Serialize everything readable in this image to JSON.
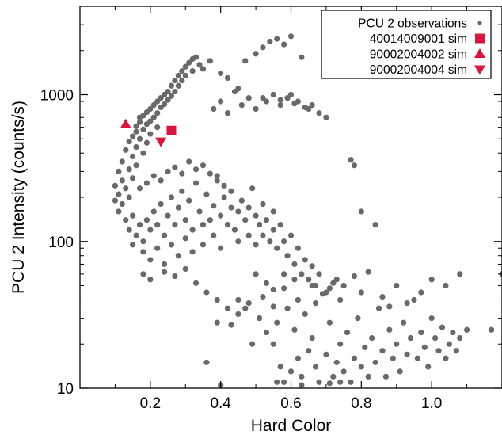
{
  "chart_data": {
    "type": "scatter",
    "title": "",
    "xlabel": "Hard Color",
    "ylabel": "PCU 2 Intensity (counts/s)",
    "xlim": [
      0.0,
      1.2
    ],
    "ylim": [
      10,
      4000
    ],
    "y_scale": "log",
    "grid": false,
    "legend_position": "top-right",
    "x_ticks": [
      {
        "value": 0.2,
        "label": "0.2"
      },
      {
        "value": 0.4,
        "label": "0.4"
      },
      {
        "value": 0.6,
        "label": "0.6"
      },
      {
        "value": 0.8,
        "label": "0.8"
      },
      {
        "value": 1.0,
        "label": "1.0"
      }
    ],
    "y_ticks": [
      {
        "value": 10,
        "label": "10"
      },
      {
        "value": 100,
        "label": "100"
      },
      {
        "value": 1000,
        "label": "1000"
      }
    ],
    "series": [
      {
        "name": "PCU 2 observations",
        "marker": "circle",
        "color": "#696969",
        "points": [
          [
            0.1,
            190
          ],
          [
            0.1,
            240
          ],
          [
            0.11,
            160
          ],
          [
            0.11,
            300
          ],
          [
            0.11,
            210
          ],
          [
            0.12,
            350
          ],
          [
            0.12,
            180
          ],
          [
            0.12,
            260
          ],
          [
            0.13,
            420
          ],
          [
            0.13,
            140
          ],
          [
            0.13,
            230
          ],
          [
            0.14,
            480
          ],
          [
            0.14,
            310
          ],
          [
            0.14,
            200
          ],
          [
            0.15,
            520
          ],
          [
            0.15,
            380
          ],
          [
            0.15,
            150
          ],
          [
            0.15,
            270
          ],
          [
            0.16,
            560
          ],
          [
            0.16,
            440
          ],
          [
            0.16,
            610
          ],
          [
            0.16,
            330
          ],
          [
            0.17,
            650
          ],
          [
            0.17,
            500
          ],
          [
            0.17,
            700
          ],
          [
            0.18,
            720
          ],
          [
            0.18,
            580
          ],
          [
            0.18,
            400
          ],
          [
            0.19,
            760
          ],
          [
            0.19,
            630
          ],
          [
            0.19,
            470
          ],
          [
            0.2,
            800
          ],
          [
            0.2,
            660
          ],
          [
            0.2,
            540
          ],
          [
            0.21,
            850
          ],
          [
            0.21,
            700
          ],
          [
            0.22,
            900
          ],
          [
            0.22,
            750
          ],
          [
            0.22,
            600
          ],
          [
            0.23,
            950
          ],
          [
            0.23,
            820
          ],
          [
            0.24,
            1000
          ],
          [
            0.24,
            860
          ],
          [
            0.25,
            1050
          ],
          [
            0.25,
            920
          ],
          [
            0.26,
            1150
          ],
          [
            0.26,
            980
          ],
          [
            0.27,
            1250
          ],
          [
            0.27,
            1050
          ],
          [
            0.28,
            1350
          ],
          [
            0.28,
            1150
          ],
          [
            0.29,
            1450
          ],
          [
            0.29,
            1250
          ],
          [
            0.3,
            1550
          ],
          [
            0.3,
            1350
          ],
          [
            0.31,
            1650
          ],
          [
            0.32,
            1750
          ],
          [
            0.32,
            1450
          ],
          [
            0.33,
            1800
          ],
          [
            0.34,
            1600
          ],
          [
            0.35,
            1500
          ],
          [
            0.37,
            1700
          ],
          [
            0.4,
            1400
          ],
          [
            0.42,
            1300
          ],
          [
            0.45,
            1100
          ],
          [
            0.14,
            120
          ],
          [
            0.15,
            95
          ],
          [
            0.16,
            110
          ],
          [
            0.17,
            130
          ],
          [
            0.18,
            100
          ],
          [
            0.18,
            85
          ],
          [
            0.19,
            140
          ],
          [
            0.2,
            120
          ],
          [
            0.2,
            75
          ],
          [
            0.21,
            160
          ],
          [
            0.22,
            130
          ],
          [
            0.22,
            90
          ],
          [
            0.23,
            180
          ],
          [
            0.24,
            110
          ],
          [
            0.24,
            70
          ],
          [
            0.25,
            150
          ],
          [
            0.26,
            200
          ],
          [
            0.26,
            95
          ],
          [
            0.27,
            130
          ],
          [
            0.28,
            170
          ],
          [
            0.28,
            80
          ],
          [
            0.29,
            220
          ],
          [
            0.3,
            140
          ],
          [
            0.3,
            105
          ],
          [
            0.31,
            190
          ],
          [
            0.32,
            120
          ],
          [
            0.32,
            85
          ],
          [
            0.33,
            250
          ],
          [
            0.34,
            160
          ],
          [
            0.35,
            130
          ],
          [
            0.35,
            95
          ],
          [
            0.36,
            210
          ],
          [
            0.37,
            140
          ],
          [
            0.38,
            175
          ],
          [
            0.38,
            110
          ],
          [
            0.39,
            280
          ],
          [
            0.4,
            150
          ],
          [
            0.4,
            90
          ],
          [
            0.41,
            200
          ],
          [
            0.42,
            130
          ],
          [
            0.43,
            170
          ],
          [
            0.44,
            120
          ],
          [
            0.45,
            160
          ],
          [
            0.45,
            100
          ],
          [
            0.46,
            190
          ],
          [
            0.47,
            140
          ],
          [
            0.48,
            110
          ],
          [
            0.48,
            170
          ],
          [
            0.49,
            230
          ],
          [
            0.5,
            150
          ],
          [
            0.5,
            95
          ],
          [
            0.51,
            130
          ],
          [
            0.52,
            180
          ],
          [
            0.52,
            110
          ],
          [
            0.53,
            140
          ],
          [
            0.54,
            100
          ],
          [
            0.55,
            160
          ],
          [
            0.55,
            120
          ],
          [
            0.56,
            90
          ],
          [
            0.57,
            130
          ],
          [
            0.58,
            100
          ],
          [
            0.59,
            80
          ],
          [
            0.6,
            110
          ],
          [
            0.61,
            70
          ],
          [
            0.62,
            90
          ],
          [
            0.63,
            60
          ],
          [
            0.64,
            75
          ],
          [
            0.65,
            55
          ],
          [
            0.66,
            68
          ],
          [
            0.67,
            50
          ],
          [
            0.68,
            60
          ],
          [
            0.7,
            45
          ],
          [
            0.72,
            52
          ],
          [
            0.74,
            40
          ],
          [
            0.17,
            230
          ],
          [
            0.19,
            250
          ],
          [
            0.21,
            280
          ],
          [
            0.23,
            260
          ],
          [
            0.25,
            300
          ],
          [
            0.27,
            320
          ],
          [
            0.29,
            290
          ],
          [
            0.31,
            350
          ],
          [
            0.33,
            310
          ],
          [
            0.35,
            330
          ],
          [
            0.37,
            290
          ],
          [
            0.39,
            260
          ],
          [
            0.41,
            240
          ],
          [
            0.43,
            220
          ],
          [
            0.18,
            60
          ],
          [
            0.2,
            55
          ],
          [
            0.24,
            62
          ],
          [
            0.27,
            58
          ],
          [
            0.3,
            65
          ],
          [
            0.33,
            52
          ],
          [
            0.36,
            45
          ],
          [
            0.39,
            40
          ],
          [
            0.42,
            35
          ],
          [
            0.45,
            32
          ],
          [
            0.48,
            38
          ],
          [
            0.52,
            42
          ],
          [
            0.55,
            36
          ],
          [
            0.38,
            800
          ],
          [
            0.4,
            900
          ],
          [
            0.42,
            750
          ],
          [
            0.44,
            1050
          ],
          [
            0.46,
            850
          ],
          [
            0.47,
            1700
          ],
          [
            0.48,
            950
          ],
          [
            0.5,
            1900
          ],
          [
            0.5,
            800
          ],
          [
            0.52,
            2100
          ],
          [
            0.53,
            900
          ],
          [
            0.54,
            2300
          ],
          [
            0.55,
            1000
          ],
          [
            0.56,
            2400
          ],
          [
            0.57,
            850
          ],
          [
            0.58,
            2200
          ],
          [
            0.59,
            950
          ],
          [
            0.6,
            2500
          ],
          [
            0.6,
            1000
          ],
          [
            0.62,
            900
          ],
          [
            0.63,
            1800
          ],
          [
            0.65,
            800
          ],
          [
            0.66,
            850
          ],
          [
            0.68,
            750
          ],
          [
            0.7,
            700
          ],
          [
            0.52,
            950
          ],
          [
            0.57,
            920
          ],
          [
            0.61,
            870
          ],
          [
            0.64,
            820
          ],
          [
            0.55,
            20
          ],
          [
            0.57,
            14
          ],
          [
            0.58,
            11
          ],
          [
            0.6,
            13
          ],
          [
            0.61,
            25
          ],
          [
            0.62,
            16
          ],
          [
            0.63,
            12
          ],
          [
            0.65,
            18
          ],
          [
            0.66,
            22
          ],
          [
            0.67,
            14
          ],
          [
            0.68,
            11
          ],
          [
            0.7,
            17
          ],
          [
            0.71,
            28
          ],
          [
            0.72,
            12
          ],
          [
            0.73,
            15
          ],
          [
            0.74,
            20
          ],
          [
            0.75,
            13
          ],
          [
            0.76,
            24
          ],
          [
            0.77,
            11
          ],
          [
            0.78,
            16
          ],
          [
            0.79,
            30
          ],
          [
            0.8,
            14
          ],
          [
            0.8,
            45
          ],
          [
            0.81,
            19
          ],
          [
            0.82,
            12
          ],
          [
            0.83,
            22
          ],
          [
            0.84,
            15
          ],
          [
            0.85,
            35
          ],
          [
            0.86,
            18
          ],
          [
            0.87,
            12
          ],
          [
            0.88,
            25
          ],
          [
            0.89,
            16
          ],
          [
            0.9,
            50
          ],
          [
            0.9,
            20
          ],
          [
            0.91,
            13
          ],
          [
            0.92,
            28
          ],
          [
            0.93,
            17
          ],
          [
            0.94,
            22
          ],
          [
            0.95,
            40
          ],
          [
            0.96,
            16
          ],
          [
            0.97,
            24
          ],
          [
            0.98,
            19
          ],
          [
            0.99,
            14
          ],
          [
            1.0,
            30
          ],
          [
            1.01,
            22
          ],
          [
            1.02,
            18
          ],
          [
            1.03,
            26
          ],
          [
            1.04,
            16
          ],
          [
            1.05,
            20
          ],
          [
            1.06,
            24
          ],
          [
            1.07,
            18
          ],
          [
            1.08,
            22
          ],
          [
            1.1,
            25
          ],
          [
            0.93,
            38
          ],
          [
            0.97,
            45
          ],
          [
            1.0,
            55
          ],
          [
            1.04,
            50
          ],
          [
            1.08,
            60
          ],
          [
            1.17,
            25
          ],
          [
            1.2,
            60
          ],
          [
            0.49,
            20
          ],
          [
            0.51,
            30
          ],
          [
            0.53,
            24
          ],
          [
            0.56,
            28
          ],
          [
            0.59,
            35
          ],
          [
            0.62,
            40
          ],
          [
            0.64,
            32
          ],
          [
            0.67,
            38
          ],
          [
            0.69,
            44
          ],
          [
            0.71,
            48
          ],
          [
            0.73,
            55
          ],
          [
            0.75,
            50
          ],
          [
            0.78,
            58
          ],
          [
            0.82,
            62
          ],
          [
            0.86,
            42
          ],
          [
            0.88,
            36
          ],
          [
            0.36,
            15
          ],
          [
            0.39,
            28
          ],
          [
            0.43,
            27
          ],
          [
            0.45,
            40
          ],
          [
            0.47,
            35
          ],
          [
            0.55,
            47
          ],
          [
            0.58,
            60
          ],
          [
            0.77,
            360
          ],
          [
            0.78,
            330
          ],
          [
            0.8,
            160
          ],
          [
            0.84,
            130
          ],
          [
            0.4,
            10.5
          ],
          [
            0.56,
            11
          ],
          [
            0.63,
            10.5
          ],
          [
            0.71,
            10.8
          ],
          [
            0.74,
            11
          ],
          [
            0.5,
            60
          ],
          [
            0.53,
            52
          ],
          [
            0.58,
            48
          ],
          [
            0.61,
            55
          ],
          [
            0.66,
            50
          ]
        ]
      },
      {
        "name": "40014009001 sim",
        "marker": "square",
        "color": "#dc143c",
        "points": [
          [
            0.26,
            570
          ]
        ]
      },
      {
        "name": "90002004002 sim",
        "marker": "triangle-up",
        "color": "#dc143c",
        "points": [
          [
            0.13,
            630
          ]
        ]
      },
      {
        "name": "90002004004 sim",
        "marker": "triangle-down",
        "color": "#dc143c",
        "points": [
          [
            0.23,
            480
          ]
        ]
      }
    ]
  }
}
